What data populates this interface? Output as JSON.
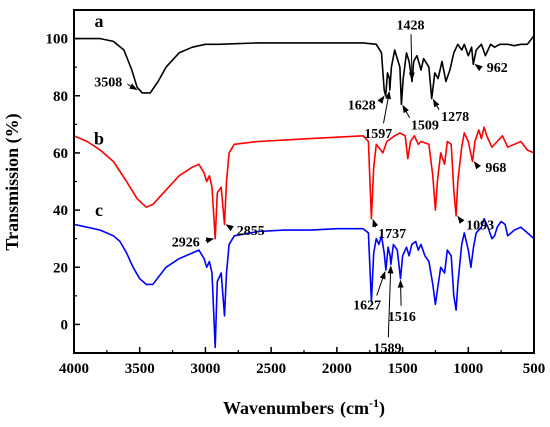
{
  "chart_data": {
    "type": "line",
    "xlabel_main": "Wavenumbers",
    "xlabel_unit_open": "(cm",
    "xlabel_unit_sup": "-1",
    "xlabel_unit_close": ")",
    "ylabel": "Transmission (%)",
    "xlim": [
      4000,
      500
    ],
    "ylim": [
      -10,
      110
    ],
    "xticks": [
      "4000",
      "3500",
      "3000",
      "2500",
      "2000",
      "1500",
      "1000",
      "500"
    ],
    "yticks": [
      "0",
      "20",
      "40",
      "60",
      "80",
      "100"
    ],
    "series": [
      {
        "name": "a",
        "color": "#000000",
        "points": [
          [
            4000,
            100
          ],
          [
            3800,
            100
          ],
          [
            3700,
            99
          ],
          [
            3620,
            96
          ],
          [
            3560,
            89
          ],
          [
            3520,
            83
          ],
          [
            3480,
            81
          ],
          [
            3420,
            81
          ],
          [
            3360,
            85
          ],
          [
            3300,
            90
          ],
          [
            3200,
            95
          ],
          [
            3100,
            97
          ],
          [
            3000,
            98
          ],
          [
            2900,
            98
          ],
          [
            2600,
            98.5
          ],
          [
            2300,
            98.5
          ],
          [
            2000,
            98.5
          ],
          [
            1800,
            98.5
          ],
          [
            1700,
            98
          ],
          [
            1660,
            95
          ],
          [
            1640,
            82
          ],
          [
            1628,
            80
          ],
          [
            1615,
            88
          ],
          [
            1600,
            86
          ],
          [
            1597,
            82
          ],
          [
            1585,
            90
          ],
          [
            1560,
            96
          ],
          [
            1540,
            93
          ],
          [
            1520,
            90
          ],
          [
            1509,
            77
          ],
          [
            1495,
            86
          ],
          [
            1470,
            95
          ],
          [
            1450,
            92
          ],
          [
            1428,
            85
          ],
          [
            1415,
            92
          ],
          [
            1390,
            94
          ],
          [
            1360,
            89
          ],
          [
            1340,
            93
          ],
          [
            1300,
            90
          ],
          [
            1278,
            79
          ],
          [
            1255,
            88
          ],
          [
            1230,
            86
          ],
          [
            1200,
            92
          ],
          [
            1170,
            85
          ],
          [
            1140,
            89
          ],
          [
            1110,
            95
          ],
          [
            1080,
            98
          ],
          [
            1050,
            96
          ],
          [
            1030,
            98
          ],
          [
            1000,
            94
          ],
          [
            975,
            97
          ],
          [
            962,
            91
          ],
          [
            940,
            96
          ],
          [
            900,
            98
          ],
          [
            870,
            94
          ],
          [
            830,
            98
          ],
          [
            800,
            97
          ],
          [
            760,
            98
          ],
          [
            700,
            98
          ],
          [
            650,
            97.5
          ],
          [
            600,
            98
          ],
          [
            550,
            98
          ],
          [
            500,
            101
          ]
        ]
      },
      {
        "name": "b",
        "color": "#ff0000",
        "points": [
          [
            4000,
            66
          ],
          [
            3900,
            64
          ],
          [
            3800,
            61
          ],
          [
            3700,
            57
          ],
          [
            3600,
            50
          ],
          [
            3520,
            44
          ],
          [
            3450,
            41
          ],
          [
            3400,
            42
          ],
          [
            3300,
            47
          ],
          [
            3200,
            52
          ],
          [
            3100,
            55
          ],
          [
            3050,
            56
          ],
          [
            3010,
            53
          ],
          [
            2990,
            50
          ],
          [
            2970,
            52
          ],
          [
            2950,
            48
          ],
          [
            2926,
            30
          ],
          [
            2910,
            46
          ],
          [
            2880,
            48
          ],
          [
            2855,
            35
          ],
          [
            2840,
            50
          ],
          [
            2820,
            60
          ],
          [
            2780,
            63
          ],
          [
            2600,
            64
          ],
          [
            2400,
            64.5
          ],
          [
            2200,
            65
          ],
          [
            2000,
            65.5
          ],
          [
            1800,
            66
          ],
          [
            1760,
            64
          ],
          [
            1737,
            37
          ],
          [
            1720,
            55
          ],
          [
            1700,
            63
          ],
          [
            1650,
            60
          ],
          [
            1620,
            64
          ],
          [
            1560,
            66
          ],
          [
            1520,
            67
          ],
          [
            1480,
            66
          ],
          [
            1460,
            58
          ],
          [
            1440,
            64
          ],
          [
            1410,
            66
          ],
          [
            1380,
            63
          ],
          [
            1360,
            64
          ],
          [
            1300,
            63
          ],
          [
            1270,
            52
          ],
          [
            1250,
            40
          ],
          [
            1235,
            50
          ],
          [
            1210,
            60
          ],
          [
            1180,
            56
          ],
          [
            1160,
            64
          ],
          [
            1130,
            63
          ],
          [
            1110,
            47
          ],
          [
            1093,
            38
          ],
          [
            1080,
            50
          ],
          [
            1050,
            62
          ],
          [
            1030,
            67
          ],
          [
            1000,
            64
          ],
          [
            968,
            57
          ],
          [
            950,
            64
          ],
          [
            920,
            68
          ],
          [
            900,
            65
          ],
          [
            880,
            69
          ],
          [
            860,
            66
          ],
          [
            820,
            62
          ],
          [
            780,
            64
          ],
          [
            740,
            66
          ],
          [
            700,
            62
          ],
          [
            650,
            63
          ],
          [
            600,
            64
          ],
          [
            550,
            61
          ],
          [
            500,
            60
          ]
        ]
      },
      {
        "name": "c",
        "color": "#0000ff",
        "points": [
          [
            4000,
            35
          ],
          [
            3900,
            34
          ],
          [
            3800,
            33
          ],
          [
            3700,
            31
          ],
          [
            3650,
            29
          ],
          [
            3600,
            25
          ],
          [
            3550,
            20
          ],
          [
            3500,
            16
          ],
          [
            3450,
            14
          ],
          [
            3400,
            14
          ],
          [
            3350,
            17
          ],
          [
            3300,
            20
          ],
          [
            3200,
            23
          ],
          [
            3100,
            25
          ],
          [
            3050,
            26
          ],
          [
            3010,
            23
          ],
          [
            2990,
            20
          ],
          [
            2970,
            22
          ],
          [
            2950,
            18
          ],
          [
            2926,
            -8
          ],
          [
            2910,
            15
          ],
          [
            2880,
            18
          ],
          [
            2855,
            3
          ],
          [
            2840,
            18
          ],
          [
            2820,
            28
          ],
          [
            2780,
            31
          ],
          [
            2600,
            32.5
          ],
          [
            2400,
            33
          ],
          [
            2200,
            33
          ],
          [
            2000,
            33.5
          ],
          [
            1800,
            33.5
          ],
          [
            1760,
            32
          ],
          [
            1737,
            8
          ],
          [
            1720,
            25
          ],
          [
            1700,
            30
          ],
          [
            1680,
            28
          ],
          [
            1660,
            31
          ],
          [
            1640,
            25
          ],
          [
            1627,
            19
          ],
          [
            1610,
            27
          ],
          [
            1595,
            24
          ],
          [
            1589,
            21
          ],
          [
            1570,
            28
          ],
          [
            1540,
            26
          ],
          [
            1516,
            16
          ],
          [
            1500,
            24
          ],
          [
            1470,
            27
          ],
          [
            1450,
            24
          ],
          [
            1430,
            28
          ],
          [
            1400,
            29
          ],
          [
            1380,
            26
          ],
          [
            1360,
            28
          ],
          [
            1330,
            24
          ],
          [
            1300,
            22
          ],
          [
            1270,
            14
          ],
          [
            1250,
            7
          ],
          [
            1235,
            12
          ],
          [
            1210,
            20
          ],
          [
            1180,
            18
          ],
          [
            1160,
            26
          ],
          [
            1130,
            24
          ],
          [
            1110,
            10
          ],
          [
            1093,
            5
          ],
          [
            1080,
            14
          ],
          [
            1050,
            28
          ],
          [
            1030,
            32
          ],
          [
            1000,
            26
          ],
          [
            980,
            20
          ],
          [
            960,
            27
          ],
          [
            940,
            32
          ],
          [
            900,
            34
          ],
          [
            880,
            37
          ],
          [
            850,
            34
          ],
          [
            820,
            30
          ],
          [
            800,
            31
          ],
          [
            780,
            34
          ],
          [
            750,
            36
          ],
          [
            720,
            35
          ],
          [
            700,
            31
          ],
          [
            650,
            33
          ],
          [
            600,
            34
          ],
          [
            550,
            32
          ],
          [
            500,
            30
          ]
        ]
      }
    ],
    "series_labels": [
      {
        "text": "a",
        "x": 3810,
        "y": 104
      },
      {
        "text": "b",
        "x": 3810,
        "y": 63
      },
      {
        "text": "c",
        "x": 3810,
        "y": 38
      }
    ],
    "annotations": [
      {
        "label": "3508",
        "point": [
          3508,
          82
        ],
        "text_at": [
          3740,
          85
        ],
        "anchor": "middle"
      },
      {
        "label": "1628",
        "point": [
          1628,
          80
        ],
        "text_at": [
          1810,
          77
        ],
        "anchor": "middle"
      },
      {
        "label": "1428",
        "point": [
          1428,
          85
        ],
        "text_at": [
          1440,
          105
        ],
        "anchor": "middle"
      },
      {
        "label": "962",
        "point": [
          962,
          91
        ],
        "text_at": [
          780,
          90
        ],
        "anchor": "middle"
      },
      {
        "label": "1278",
        "point": [
          1278,
          79
        ],
        "text_at": [
          1100,
          73
        ],
        "anchor": "middle"
      },
      {
        "label": "1597",
        "point": [
          1597,
          82
        ],
        "text_at": [
          1685,
          67
        ],
        "anchor": "middle"
      },
      {
        "label": "1509",
        "point": [
          1509,
          77
        ],
        "text_at": [
          1330,
          70
        ],
        "anchor": "middle"
      },
      {
        "label": "968",
        "point": [
          968,
          57
        ],
        "text_at": [
          790,
          55
        ],
        "anchor": "middle"
      },
      {
        "label": "2855",
        "point": [
          2855,
          35
        ],
        "text_at": [
          2655,
          33
        ],
        "anchor": "middle"
      },
      {
        "label": "1737",
        "point": [
          1737,
          37
        ],
        "text_at": [
          1580,
          32
        ],
        "anchor": "middle"
      },
      {
        "label": "1093",
        "point": [
          1093,
          38
        ],
        "text_at": [
          910,
          35
        ],
        "anchor": "middle"
      },
      {
        "label": "2926",
        "point": [
          2926,
          30
        ],
        "text_at": [
          3150,
          29
        ],
        "anchor": "middle"
      },
      {
        "label": "1627",
        "point": [
          1627,
          19
        ],
        "text_at": [
          1770,
          7
        ],
        "anchor": "middle"
      },
      {
        "label": "1516",
        "point": [
          1516,
          16
        ],
        "text_at": [
          1505,
          3
        ],
        "anchor": "middle"
      },
      {
        "label": "1589",
        "point": [
          1589,
          21
        ],
        "text_at": [
          1615,
          -8
        ],
        "anchor": "middle"
      }
    ]
  }
}
